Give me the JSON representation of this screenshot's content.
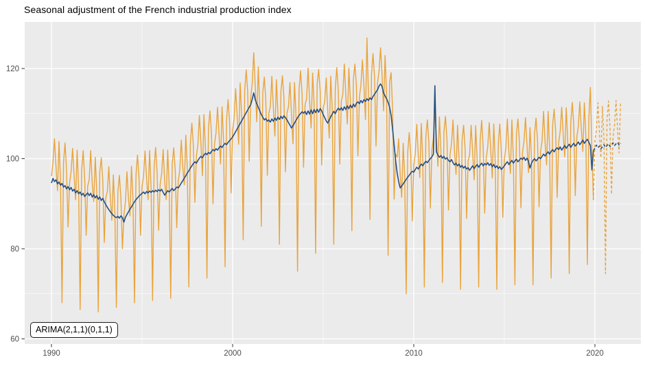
{
  "title": "Seasonal adjustment of the French industrial production index",
  "annotation": {
    "label": "ARIMA(2,1,1)(0,1,1)"
  },
  "colors": {
    "observed": "#E9A33B",
    "adjusted": "#244E82",
    "panel_bg": "#EBEBEB",
    "grid_major": "#FFFFFF",
    "grid_minor": "#FFFFFF",
    "axis_text": "#4D4D4D",
    "tick_mark": "#333333",
    "title_text": "#000000"
  },
  "chart_data": {
    "type": "line",
    "title": "Seasonal adjustment of the French industrial production index",
    "xlabel": "",
    "ylabel": "",
    "frequency": "monthly",
    "xlim": [
      1988.6,
      2022.6
    ],
    "ylim": [
      58.9,
      130.4
    ],
    "grid": true,
    "legend_position": "none",
    "x_axis": {
      "ticks": [
        1990,
        2000,
        2010,
        2020
      ],
      "labels": [
        "1990",
        "2000",
        "2010",
        "2020"
      ],
      "minor": [
        1995,
        2005,
        2015
      ]
    },
    "y_axis": {
      "ticks": [
        60,
        80,
        100,
        120
      ],
      "labels": [
        "60",
        "80",
        "100",
        "120"
      ],
      "minor": [
        70,
        90,
        110
      ]
    },
    "series": [
      {
        "name": "observed-index",
        "style": "solid",
        "color_key": "observed",
        "width": 1.4,
        "start": 1990.0,
        "values": [
          96.1,
          99.1,
          104.4,
          98.3,
          92.9,
          103.8,
          95.1,
          68.0,
          99.2,
          103.5,
          97.3,
          84.8,
          94.6,
          97.1,
          102.3,
          96.2,
          90.9,
          101.9,
          93.2,
          66.5,
          97.4,
          101.8,
          95.6,
          83.0,
          93.9,
          95.3,
          101.8,
          94.5,
          90.5,
          100.3,
          92.8,
          66.0,
          97.0,
          100.2,
          95.2,
          81.4,
          91.3,
          92.7,
          98.2,
          91.2,
          86.3,
          96.4,
          88.1,
          67.0,
          92.7,
          96.3,
          91.3,
          80.0,
          87.4,
          90.5,
          97.1,
          91.2,
          87.3,
          98.3,
          90.9,
          68.0,
          96.4,
          100.8,
          95.7,
          83.0,
          93.8,
          96.1,
          101.7,
          95.7,
          90.9,
          101.8,
          93.5,
          68.5,
          98.1,
          102.5,
          96.7,
          84.1,
          94.3,
          96.7,
          102.0,
          94.9,
          90.9,
          101.9,
          93.6,
          69.0,
          98.9,
          102.4,
          97.3,
          84.7,
          95.0,
          97.5,
          104.1,
          98.1,
          94.2,
          105.2,
          97.8,
          71.5,
          103.4,
          107.9,
          102.9,
          90.3,
          100.5,
          103.1,
          109.6,
          103.5,
          96.2,
          109.8,
          102.2,
          73.5,
          106.9,
          110.6,
          105.6,
          90.0,
          103.2,
          105.7,
          111.4,
          105.4,
          98.8,
          111.5,
          104.0,
          76.0,
          108.6,
          113.1,
          108.0,
          92.4,
          106.3,
          108.9,
          115.5,
          109.6,
          103.2,
          116.8,
          109.4,
          82.0,
          115.1,
          119.7,
          114.8,
          99.4,
          113.5,
          116.7,
          123.5,
          116.1,
          108.2,
          120.4,
          111.6,
          85.0,
          114.7,
          118.1,
          112.9,
          96.3,
          110.1,
          111.6,
          118.3,
          111.3,
          105.0,
          117.5,
          110.2,
          81.0,
          114.9,
          118.4,
          113.5,
          97.1,
          110.1,
          111.5,
          116.9,
          109.8,
          103.3,
          116.9,
          109.5,
          75.0,
          115.1,
          119.5,
          114.4,
          98.1,
          112.0,
          113.3,
          120.1,
          112.9,
          106.8,
          119.0,
          111.9,
          79.0,
          116.5,
          119.8,
          115.1,
          98.6,
          111.3,
          112.6,
          117.9,
          110.9,
          104.6,
          118.3,
          110.9,
          81.0,
          115.5,
          120.2,
          115.2,
          98.8,
          112.8,
          114.2,
          121.0,
          113.9,
          107.7,
          120.1,
          112.9,
          84.0,
          117.6,
          121.0,
          116.3,
          100.6,
          113.7,
          116.4,
          121.9,
          116.1,
          108.7,
          126.8,
          113.9,
          86.5,
          118.6,
          123.3,
          118.3,
          102.8,
          116.8,
          119.4,
          124.6,
          118.6,
          110.6,
          122.9,
          114.3,
          78.5,
          116.9,
          119.1,
          110.5,
          91.0,
          101.0,
          100.3,
          104.4,
          96.5,
          91.4,
          103.4,
          95.9,
          70.0,
          101.4,
          105.8,
          100.8,
          86.2,
          98.5,
          101.1,
          107.6,
          100.7,
          95.8,
          107.8,
          99.4,
          71.5,
          104.9,
          108.6,
          103.6,
          89.0,
          101.9,
          104.5,
          110.5,
          104.5,
          98.3,
          109.3,
          101.7,
          72.5,
          106.0,
          109.4,
          104.2,
          88.6,
          100.8,
          103.3,
          108.6,
          101.6,
          96.5,
          107.4,
          99.8,
          71.0,
          104.0,
          107.4,
          102.3,
          86.7,
          99.5,
          100.9,
          107.4,
          101.4,
          95.3,
          107.3,
          99.7,
          71.5,
          104.1,
          108.5,
          102.4,
          87.9,
          100.1,
          102.6,
          108.0,
          101.9,
          95.7,
          107.7,
          99.0,
          71.0,
          103.3,
          107.7,
          101.6,
          87.0,
          99.9,
          102.4,
          108.8,
          101.7,
          96.7,
          108.6,
          100.0,
          72.0,
          105.4,
          108.8,
          103.7,
          89.1,
          101.3,
          103.8,
          109.1,
          103.1,
          96.9,
          106.9,
          100.0,
          72.0,
          105.5,
          109.0,
          103.9,
          89.3,
          101.5,
          104.0,
          110.5,
          103.6,
          98.6,
          110.5,
          102.0,
          73.5,
          107.5,
          111.0,
          106.1,
          91.4,
          103.5,
          106.1,
          111.4,
          105.4,
          100.4,
          111.3,
          103.8,
          74.5,
          108.0,
          112.5,
          107.4,
          91.8,
          104.7,
          107.2,
          112.6,
          106.6,
          101.6,
          112.4,
          104.9,
          76.5,
          109.1,
          115.8,
          101.5,
          90.8
        ]
      },
      {
        "name": "seasonally-adjusted",
        "style": "solid",
        "color_key": "adjusted",
        "width": 1.6,
        "start": 1990.0,
        "values": [
          94.6,
          95.6,
          94.9,
          95.3,
          94.4,
          94.8,
          94.1,
          94.5,
          93.7,
          94.0,
          93.3,
          93.8,
          93.1,
          93.6,
          92.8,
          93.2,
          92.4,
          92.9,
          92.2,
          92.6,
          91.9,
          92.3,
          91.6,
          92.0,
          92.4,
          91.8,
          92.3,
          91.5,
          92.0,
          91.3,
          91.8,
          91.0,
          91.5,
          90.7,
          91.2,
          90.4,
          89.8,
          89.2,
          88.7,
          88.2,
          87.8,
          87.4,
          87.1,
          86.9,
          87.2,
          86.8,
          87.3,
          86.9,
          85.9,
          87.0,
          87.6,
          88.2,
          88.8,
          89.3,
          89.9,
          90.4,
          90.9,
          91.3,
          91.7,
          92.0,
          92.3,
          92.6,
          92.2,
          92.7,
          92.4,
          92.8,
          92.5,
          92.9,
          92.6,
          93.0,
          92.7,
          93.1,
          92.8,
          93.2,
          92.5,
          91.9,
          92.4,
          92.9,
          92.6,
          93.0,
          93.4,
          92.9,
          93.3,
          93.7,
          93.5,
          94.0,
          94.6,
          95.1,
          95.7,
          96.2,
          96.8,
          97.3,
          97.9,
          98.4,
          98.9,
          99.3,
          99.0,
          99.6,
          100.1,
          100.5,
          100.2,
          100.8,
          101.2,
          100.9,
          101.4,
          101.1,
          101.6,
          102.0,
          101.7,
          102.2,
          101.9,
          102.4,
          102.8,
          102.5,
          103.0,
          103.4,
          103.1,
          103.6,
          104.0,
          104.4,
          104.8,
          105.4,
          106.0,
          106.6,
          107.2,
          107.8,
          108.4,
          109.0,
          109.6,
          110.2,
          110.8,
          111.4,
          112.0,
          113.2,
          114.6,
          113.1,
          112.2,
          111.4,
          110.6,
          109.8,
          109.2,
          108.6,
          108.9,
          108.3,
          108.6,
          108.1,
          108.8,
          108.3,
          109.0,
          108.5,
          109.2,
          108.7,
          109.4,
          108.9,
          109.5,
          109.1,
          108.6,
          108.0,
          107.4,
          106.8,
          107.3,
          107.9,
          108.5,
          109.1,
          109.6,
          110.0,
          110.4,
          110.1,
          110.5,
          109.8,
          110.6,
          109.9,
          110.8,
          110.0,
          110.9,
          110.2,
          111.0,
          110.3,
          111.1,
          110.6,
          109.8,
          109.1,
          108.4,
          107.9,
          108.6,
          109.3,
          109.9,
          110.5,
          110.0,
          110.7,
          111.2,
          110.8,
          111.3,
          110.7,
          111.5,
          110.9,
          111.7,
          111.1,
          111.9,
          111.3,
          112.1,
          111.5,
          112.3,
          112.6,
          112.2,
          112.9,
          112.4,
          113.1,
          112.7,
          113.3,
          112.9,
          113.5,
          113.1,
          113.8,
          114.3,
          114.8,
          115.3,
          116.1,
          116.6,
          116.0,
          114.6,
          113.9,
          113.3,
          112.5,
          111.4,
          109.6,
          106.5,
          103.0,
          99.5,
          96.8,
          94.9,
          93.5,
          93.9,
          94.4,
          94.9,
          95.4,
          95.9,
          96.3,
          96.8,
          97.2,
          97.0,
          97.6,
          98.1,
          97.7,
          98.3,
          98.8,
          98.4,
          99.0,
          99.4,
          99.1,
          99.6,
          100.0,
          100.4,
          101.0,
          116.2,
          101.5,
          100.8,
          100.3,
          100.7,
          100.1,
          100.5,
          99.9,
          100.2,
          99.6,
          99.3,
          99.8,
          99.1,
          98.6,
          99.0,
          98.4,
          98.8,
          98.1,
          98.5,
          97.9,
          98.3,
          97.7,
          98.0,
          97.4,
          97.9,
          98.4,
          97.8,
          98.3,
          98.7,
          98.1,
          98.6,
          99.0,
          98.4,
          98.9,
          98.6,
          99.1,
          98.5,
          98.9,
          98.2,
          98.7,
          98.0,
          98.4,
          97.8,
          98.2,
          97.6,
          98.0,
          98.4,
          98.9,
          99.3,
          98.7,
          99.2,
          99.6,
          99.0,
          99.5,
          99.9,
          99.3,
          99.7,
          100.1,
          99.8,
          100.3,
          99.6,
          100.1,
          99.4,
          97.9,
          99.0,
          99.6,
          100.0,
          99.5,
          99.9,
          100.3,
          100.0,
          100.5,
          101.0,
          100.6,
          101.1,
          101.5,
          101.0,
          101.6,
          102.0,
          101.5,
          102.1,
          102.4,
          102.0,
          102.6,
          101.9,
          102.4,
          102.9,
          102.3,
          102.8,
          103.2,
          102.5,
          103.0,
          103.4,
          102.8,
          103.2,
          103.7,
          103.1,
          103.6,
          104.1,
          103.4,
          103.9,
          104.3,
          103.6,
          102.9,
          97.5,
          101.8
        ]
      },
      {
        "name": "observed-forecast",
        "style": "dashed",
        "color_key": "observed",
        "width": 1.4,
        "start": 2020.0,
        "connect_to": "observed-index",
        "values": [
          103.8,
          106.5,
          112.4,
          105.8,
          100.2,
          111.6,
          104.1,
          74.5,
          108.4,
          112.8,
          106.7,
          92.1,
          104.9,
          107.4,
          112.9,
          106.5,
          101.3,
          112.6
        ]
      },
      {
        "name": "adjusted-forecast",
        "style": "dashed",
        "color_key": "adjusted",
        "width": 1.6,
        "start": 2020.0,
        "connect_to": "seasonally-adjusted",
        "values": [
          102.3,
          103.0,
          102.4,
          102.8,
          102.2,
          102.6,
          103.1,
          102.5,
          102.9,
          103.3,
          102.7,
          103.1,
          103.5,
          102.9,
          103.3,
          103.6,
          103.0,
          103.4
        ]
      }
    ]
  }
}
